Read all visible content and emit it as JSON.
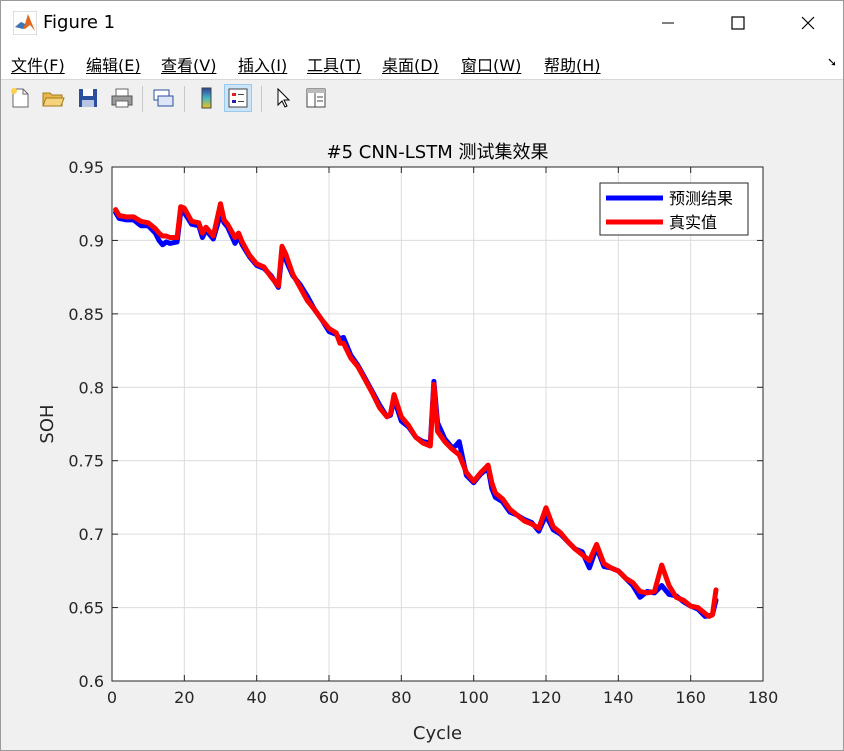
{
  "window": {
    "title": "Figure 1"
  },
  "menu": [
    "文件(F)",
    "编辑(E)",
    "查看(V)",
    "插入(I)",
    "工具(T)",
    "桌面(D)",
    "窗口(W)",
    "帮助(H)"
  ],
  "toolbar_icons": [
    "new-figure-icon",
    "open-file-icon",
    "save-icon",
    "print-icon",
    "link-plot-icon",
    "colorbar-icon",
    "legend-icon",
    "pointer-icon",
    "property-inspector-icon"
  ],
  "colors": {
    "predicted": "#0000ff",
    "actual": "#ff0000",
    "grid": "#dcdcdc"
  },
  "chart_data": {
    "type": "line",
    "title": "#5 CNN-LSTM 测试集效果",
    "xlabel": "Cycle",
    "ylabel": "SOH",
    "xlim": [
      0,
      180
    ],
    "ylim": [
      0.6,
      0.95
    ],
    "xticks": [
      0,
      20,
      40,
      60,
      80,
      100,
      120,
      140,
      160,
      180
    ],
    "yticks": [
      0.6,
      0.65,
      0.7,
      0.75,
      0.8,
      0.85,
      0.9,
      0.95
    ],
    "xtick_labels": [
      "0",
      "20",
      "40",
      "60",
      "80",
      "100",
      "120",
      "140",
      "160",
      "180"
    ],
    "ytick_labels": [
      "0.6",
      "0.65",
      "0.7",
      "0.75",
      "0.8",
      "0.85",
      "0.9",
      "0.95"
    ],
    "grid": true,
    "legend_position": "top-right",
    "series": [
      {
        "name": "预测结果",
        "color": "#0000ff",
        "x": [
          1,
          2,
          4,
          6,
          8,
          10,
          12,
          13,
          14,
          15,
          16,
          18,
          19,
          20,
          22,
          24,
          25,
          26,
          28,
          30,
          31,
          32,
          34,
          35,
          36,
          38,
          40,
          42,
          44,
          46,
          47,
          48,
          50,
          52,
          54,
          56,
          58,
          60,
          62,
          63,
          64,
          66,
          68,
          70,
          72,
          74,
          76,
          77,
          78,
          80,
          82,
          84,
          86,
          88,
          89,
          90,
          92,
          94,
          95,
          96,
          98,
          100,
          102,
          104,
          105,
          106,
          108,
          110,
          112,
          114,
          116,
          118,
          120,
          122,
          124,
          126,
          128,
          130,
          132,
          134,
          136,
          138,
          140,
          142,
          144,
          146,
          148,
          150,
          152,
          154,
          156,
          158,
          160,
          162,
          164,
          166,
          167
        ],
        "y": [
          0.919,
          0.915,
          0.914,
          0.914,
          0.91,
          0.91,
          0.905,
          0.9,
          0.897,
          0.899,
          0.898,
          0.899,
          0.919,
          0.919,
          0.911,
          0.91,
          0.902,
          0.907,
          0.901,
          0.918,
          0.912,
          0.909,
          0.898,
          0.903,
          0.897,
          0.889,
          0.883,
          0.881,
          0.876,
          0.868,
          0.891,
          0.887,
          0.876,
          0.87,
          0.862,
          0.853,
          0.846,
          0.838,
          0.836,
          0.833,
          0.834,
          0.822,
          0.815,
          0.806,
          0.797,
          0.788,
          0.78,
          0.781,
          0.792,
          0.777,
          0.773,
          0.766,
          0.763,
          0.762,
          0.804,
          0.776,
          0.765,
          0.759,
          0.76,
          0.763,
          0.74,
          0.735,
          0.741,
          0.745,
          0.731,
          0.725,
          0.722,
          0.715,
          0.713,
          0.71,
          0.708,
          0.702,
          0.713,
          0.703,
          0.7,
          0.695,
          0.69,
          0.688,
          0.677,
          0.691,
          0.678,
          0.677,
          0.675,
          0.67,
          0.665,
          0.657,
          0.661,
          0.66,
          0.665,
          0.659,
          0.658,
          0.654,
          0.651,
          0.649,
          0.644,
          0.645,
          0.655
        ]
      },
      {
        "name": "真实值",
        "color": "#ff0000",
        "x": [
          1,
          2,
          4,
          6,
          8,
          10,
          12,
          13,
          14,
          15,
          16,
          18,
          19,
          20,
          22,
          24,
          25,
          26,
          28,
          30,
          31,
          32,
          34,
          35,
          36,
          38,
          40,
          42,
          44,
          46,
          47,
          48,
          50,
          52,
          54,
          56,
          58,
          60,
          62,
          63,
          64,
          66,
          68,
          70,
          72,
          74,
          76,
          77,
          78,
          80,
          82,
          84,
          86,
          88,
          89,
          90,
          92,
          94,
          95,
          96,
          98,
          100,
          102,
          104,
          105,
          106,
          108,
          110,
          112,
          114,
          116,
          118,
          120,
          122,
          124,
          126,
          128,
          130,
          132,
          134,
          136,
          138,
          140,
          142,
          144,
          146,
          148,
          150,
          152,
          154,
          156,
          158,
          160,
          162,
          164,
          165,
          166,
          167
        ],
        "y": [
          0.921,
          0.917,
          0.916,
          0.916,
          0.913,
          0.912,
          0.908,
          0.905,
          0.903,
          0.903,
          0.902,
          0.902,
          0.923,
          0.922,
          0.913,
          0.912,
          0.905,
          0.909,
          0.903,
          0.925,
          0.914,
          0.911,
          0.902,
          0.905,
          0.899,
          0.89,
          0.884,
          0.882,
          0.875,
          0.869,
          0.896,
          0.891,
          0.877,
          0.868,
          0.859,
          0.853,
          0.846,
          0.84,
          0.837,
          0.83,
          0.83,
          0.82,
          0.814,
          0.805,
          0.796,
          0.786,
          0.78,
          0.782,
          0.795,
          0.78,
          0.774,
          0.766,
          0.762,
          0.76,
          0.802,
          0.77,
          0.763,
          0.758,
          0.756,
          0.754,
          0.742,
          0.736,
          0.742,
          0.747,
          0.735,
          0.728,
          0.724,
          0.717,
          0.713,
          0.709,
          0.707,
          0.704,
          0.718,
          0.705,
          0.701,
          0.695,
          0.69,
          0.686,
          0.682,
          0.693,
          0.68,
          0.677,
          0.675,
          0.67,
          0.667,
          0.661,
          0.66,
          0.661,
          0.679,
          0.665,
          0.657,
          0.655,
          0.651,
          0.65,
          0.646,
          0.644,
          0.645,
          0.662
        ]
      }
    ]
  }
}
